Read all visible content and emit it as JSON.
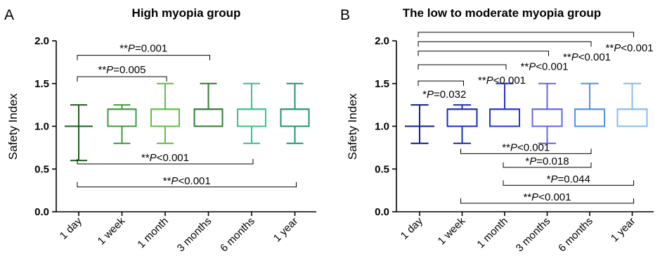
{
  "chart_data": [
    {
      "type": "box",
      "panel_letter": "A",
      "title": "High myopia group",
      "ylabel": "Safety Index",
      "ylim": [
        0,
        2
      ],
      "yticks": [
        "0.0",
        "0.5",
        "1.0",
        "1.5",
        "2.0"
      ],
      "categories": [
        "1 day",
        "1 week",
        "1 month",
        "3 months",
        "6 months",
        "1 year"
      ],
      "boxes": [
        {
          "min": 0.6,
          "q1": 1.0,
          "median": 1.0,
          "q3": 1.0,
          "max": 1.25,
          "color": "#1e5e1e"
        },
        {
          "min": 0.8,
          "q1": 1.0,
          "median": 1.2,
          "q3": 1.2,
          "max": 1.25,
          "color": "#3f9a3f"
        },
        {
          "min": 0.8,
          "q1": 1.0,
          "median": 1.2,
          "q3": 1.2,
          "max": 1.5,
          "color": "#5cc23c"
        },
        {
          "min": 1.0,
          "q1": 1.0,
          "median": 1.2,
          "q3": 1.2,
          "max": 1.5,
          "color": "#2e7d32"
        },
        {
          "min": 0.8,
          "q1": 1.0,
          "median": 1.2,
          "q3": 1.2,
          "max": 1.5,
          "color": "#33c48a"
        },
        {
          "min": 0.8,
          "q1": 1.0,
          "median": 1.2,
          "q3": 1.2,
          "max": 1.5,
          "color": "#22976a"
        }
      ],
      "annotations": [
        {
          "from": 0,
          "to": 3,
          "level": 1.83,
          "dir": "down",
          "stars": "**",
          "rel": "=",
          "value": "0.001"
        },
        {
          "from": 0,
          "to": 2,
          "level": 1.58,
          "dir": "down",
          "stars": "**",
          "rel": "=",
          "value": "0.005"
        },
        {
          "from": 0,
          "to": 4,
          "level": 0.56,
          "dir": "up",
          "stars": "**",
          "rel": "<",
          "value": "0.001"
        },
        {
          "from": 0,
          "to": 5,
          "level": 0.29,
          "dir": "up",
          "stars": "**",
          "rel": "<",
          "value": "0.001"
        }
      ]
    },
    {
      "type": "box",
      "panel_letter": "B",
      "title": "The low to moderate myopia group",
      "ylabel": "Safety Index",
      "ylim": [
        0,
        2
      ],
      "yticks": [
        "0.0",
        "0.5",
        "1.0",
        "1.5",
        "2.0"
      ],
      "categories": [
        "1 day",
        "1 week",
        "1 month",
        "3 months",
        "6 months",
        "1 year"
      ],
      "boxes": [
        {
          "min": 0.8,
          "q1": 1.0,
          "median": 1.0,
          "q3": 1.0,
          "max": 1.25,
          "color": "#0d1f8c"
        },
        {
          "min": 0.8,
          "q1": 1.0,
          "median": 1.2,
          "q3": 1.2,
          "max": 1.25,
          "color": "#1a2fb8"
        },
        {
          "min": 1.0,
          "q1": 1.0,
          "median": 1.2,
          "q3": 1.2,
          "max": 1.5,
          "color": "#2433d9"
        },
        {
          "min": 0.8,
          "q1": 1.0,
          "median": 1.2,
          "q3": 1.2,
          "max": 1.5,
          "color": "#6666e0"
        },
        {
          "min": 1.0,
          "q1": 1.0,
          "median": 1.2,
          "q3": 1.2,
          "max": 1.5,
          "color": "#4f93e8"
        },
        {
          "min": 1.0,
          "q1": 1.0,
          "median": 1.2,
          "q3": 1.2,
          "max": 1.5,
          "color": "#86bdf0"
        }
      ],
      "annotations": [
        {
          "from": 0,
          "to": 5,
          "level": 2.1,
          "dir": "down",
          "stars": "**",
          "rel": "<",
          "value": "0.001",
          "label_pos": "right"
        },
        {
          "from": 0,
          "to": 4,
          "level": 1.99,
          "dir": "down",
          "stars": "**",
          "rel": "<",
          "value": "0.001",
          "label_pos": "right"
        },
        {
          "from": 0,
          "to": 3,
          "level": 1.88,
          "dir": "down",
          "stars": "**",
          "rel": "<",
          "value": "0.001",
          "label_pos": "right"
        },
        {
          "from": 0,
          "to": 2,
          "level": 1.72,
          "dir": "down",
          "stars": "**",
          "rel": "<",
          "value": "0.001",
          "label_pos": "right"
        },
        {
          "from": 0,
          "to": 1,
          "level": 1.53,
          "dir": "down",
          "stars": "*",
          "rel": "=",
          "value": "0.032",
          "label_pos": "below"
        },
        {
          "from": 1,
          "to": 4,
          "level": 0.68,
          "dir": "up",
          "stars": "**",
          "rel": "<",
          "value": "0.001"
        },
        {
          "from": 2,
          "to": 4,
          "level": 0.52,
          "dir": "up",
          "stars": "*",
          "rel": "=",
          "value": "0.018"
        },
        {
          "from": 2,
          "to": 5,
          "level": 0.31,
          "dir": "up",
          "stars": "*",
          "rel": "=",
          "value": "0.044"
        },
        {
          "from": 1,
          "to": 5,
          "level": 0.1,
          "dir": "up",
          "stars": "**",
          "rel": "<",
          "value": "0.001"
        }
      ]
    }
  ]
}
